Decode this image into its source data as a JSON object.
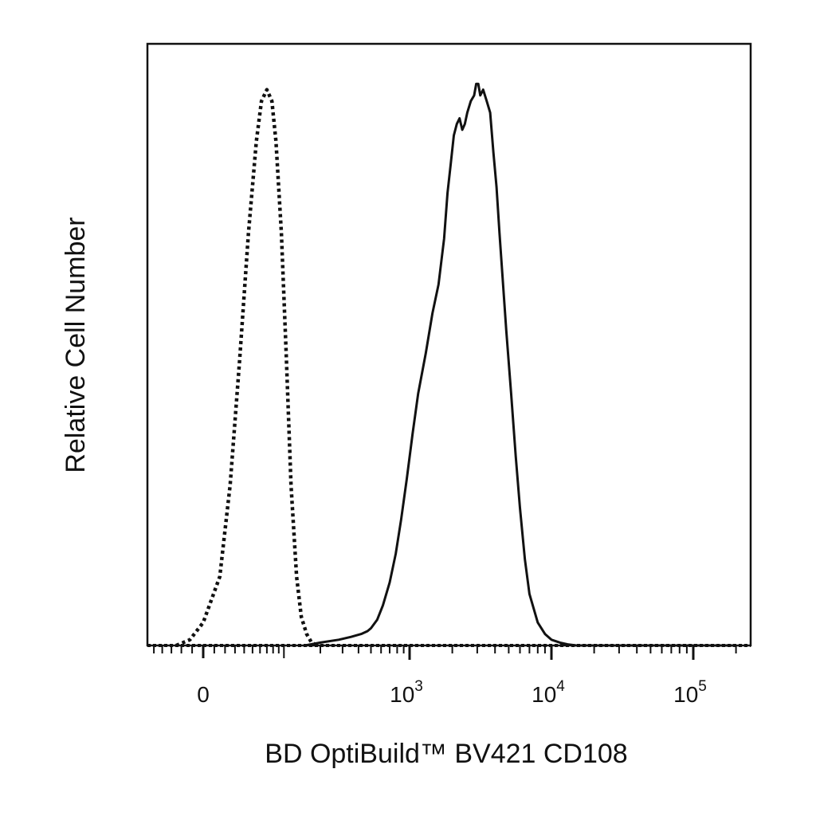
{
  "chart_data": {
    "type": "line",
    "title": "",
    "xlabel": "BD OptiBuild™ BV421 CD108",
    "ylabel": "Relative Cell Number",
    "x_scale": "biexponential",
    "xlim": [
      -180,
      250000
    ],
    "ylim": [
      0,
      105
    ],
    "grid": false,
    "legend": "none",
    "x_ticks": [
      {
        "value": 0,
        "base": "0",
        "exp": ""
      },
      {
        "value": 1000,
        "base": "10",
        "exp": "3"
      },
      {
        "value": 10000,
        "base": "10",
        "exp": "4"
      },
      {
        "value": 100000,
        "base": "10",
        "exp": "5"
      }
    ],
    "series": [
      {
        "style": "dotted",
        "color": "#111111",
        "x": [
          -25,
          -12,
          0,
          15,
          25,
          35,
          45,
          55,
          62,
          70,
          78,
          85,
          95,
          105,
          115,
          128,
          140,
          155,
          170,
          190
        ],
        "y": [
          0,
          1,
          4,
          12,
          28,
          50,
          72,
          88,
          95,
          97,
          95,
          88,
          72,
          50,
          28,
          12,
          5,
          2,
          0.5,
          0
        ]
      },
      {
        "style": "solid",
        "color": "#111111",
        "x": [
          150,
          200,
          280,
          350,
          420,
          470,
          500,
          560,
          620,
          700,
          780,
          860,
          950,
          1050,
          1150,
          1300,
          1450,
          1600,
          1750,
          1850,
          1950,
          2050,
          2150,
          2250,
          2350,
          2450,
          2550,
          2700,
          2850,
          2950,
          3050,
          3150,
          3300,
          3500,
          3700,
          3900,
          4100,
          4300,
          4500,
          4800,
          5200,
          5600,
          6000,
          6500,
          7000,
          8000,
          9000,
          10000,
          11500,
          13000,
          15000,
          20000,
          30000,
          50000,
          100000,
          200000
        ],
        "y": [
          0,
          0.5,
          1,
          1.5,
          2,
          2.5,
          3,
          4.5,
          7,
          11,
          16,
          22,
          29,
          37,
          44,
          51,
          58,
          63,
          71,
          79,
          84,
          89,
          91,
          92,
          90,
          91,
          93,
          95,
          96,
          98,
          98,
          96,
          97,
          95,
          93,
          86,
          80,
          72,
          65,
          55,
          44,
          33,
          24,
          15,
          9,
          4,
          2,
          1,
          0.5,
          0.2,
          0,
          0,
          0,
          0,
          0,
          0
        ]
      }
    ]
  }
}
